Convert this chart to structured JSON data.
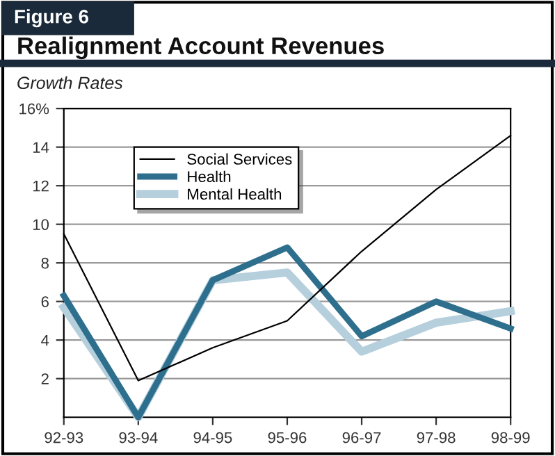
{
  "chart_data": {
    "type": "line",
    "title": "Realignment Account Revenues",
    "subtitle": "Growth Rates",
    "annotations": [
      "Figure 6"
    ],
    "categories": [
      "92-93",
      "93-94",
      "94-95",
      "95-96",
      "96-97",
      "97-98",
      "98-99"
    ],
    "series": [
      {
        "name": "Social Services",
        "color": "#000000",
        "values": [
          9.5,
          1.9,
          3.6,
          5.0,
          8.6,
          11.8,
          14.6
        ]
      },
      {
        "name": "Health",
        "color": "#2e6f8e",
        "values": [
          6.3,
          0.0,
          7.1,
          8.8,
          4.2,
          6.0,
          4.6
        ]
      },
      {
        "name": "Mental Health",
        "color": "#b5cfdd",
        "values": [
          5.7,
          0.0,
          7.1,
          7.5,
          3.4,
          4.9,
          5.5
        ]
      }
    ],
    "ylim": [
      0,
      16
    ],
    "yticks": [
      2,
      4,
      6,
      8,
      10,
      12,
      14,
      {
        "value": 16,
        "label": "16%"
      }
    ],
    "grid": "y",
    "legend": "top left",
    "marker": "none",
    "line_style": "solid"
  }
}
